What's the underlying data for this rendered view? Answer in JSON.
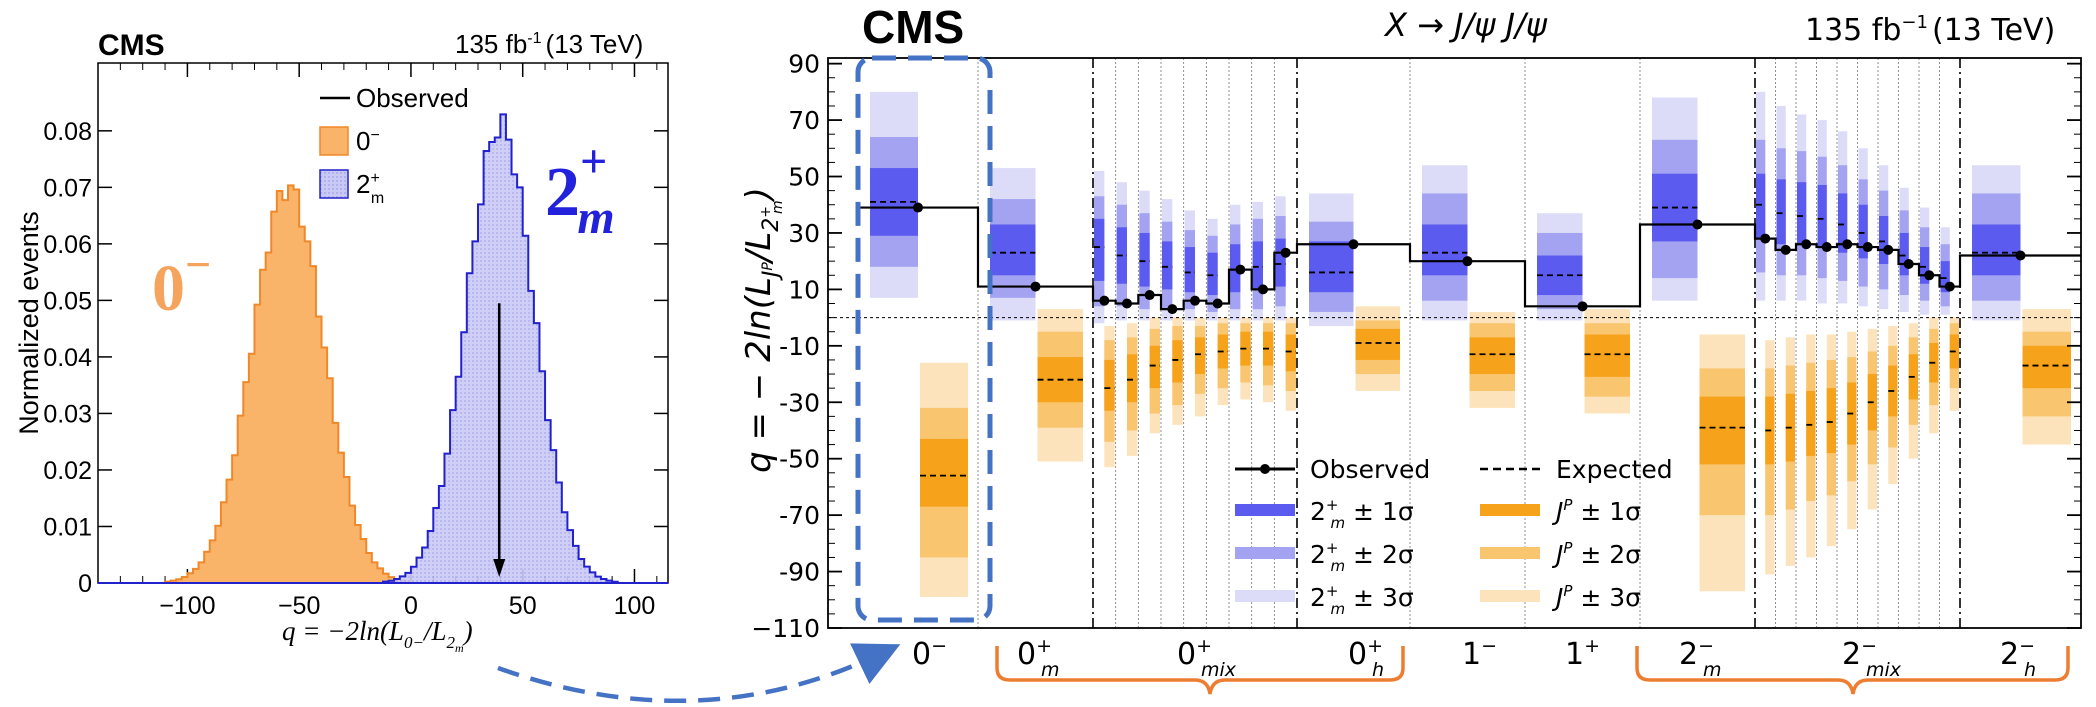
{
  "chart_data": [
    {
      "type": "histogram",
      "experiment": "CMS",
      "luminosity": "135 fb",
      "luminosity_sup": "-1",
      "energy": "(13 TeV)",
      "xlabel": "q = −2ln(L",
      "xlabel_sub1": "0−",
      "xlabel_sub2": "2",
      "xlabel_sub3": "m",
      "ylabel": "Normalized events",
      "xlim": [
        -140,
        115
      ],
      "ylim": [
        0,
        0.092
      ],
      "x_ticks": [
        -100,
        -50,
        0,
        50,
        100
      ],
      "x_tick_labels": [
        "−100",
        "−50",
        "0",
        "50",
        "100"
      ],
      "y_ticks": [
        0,
        0.01,
        0.02,
        0.03,
        0.04,
        0.05,
        0.06,
        0.07,
        0.08
      ],
      "y_tick_labels": [
        "0",
        "0.01",
        "0.02",
        "0.03",
        "0.04",
        "0.05",
        "0.06",
        "0.07",
        "0.08"
      ],
      "legend": {
        "observed": "Observed",
        "h1": "0",
        "h1_sup": "−",
        "h2": "2",
        "h2_sup": "+",
        "h2_sub": "m"
      },
      "big_labels": {
        "zero_minus": "0",
        "zero_minus_sup": "−",
        "two_plus": "2",
        "two_plus_sup": "+",
        "two_plus_sub": "m"
      },
      "series": [
        {
          "name": "0−",
          "mean": -55,
          "sigma": 16,
          "peak": 0.07,
          "color": "#f9b46a"
        },
        {
          "name": "2+m",
          "mean": 40,
          "sigma": 15,
          "peak": 0.081,
          "color": "#c8c8f4"
        }
      ],
      "observed_q": 39.5
    },
    {
      "type": "band-summary",
      "experiment": "CMS",
      "title": "X → J/ψ J/ψ",
      "luminosity": "135 fb",
      "luminosity_sup": "−1",
      "energy": "(13 TeV)",
      "ylabel": "q = − 2ln(L",
      "ylim": [
        -110,
        92
      ],
      "y_ticks": [
        90,
        70,
        50,
        30,
        10,
        -10,
        -30,
        -50,
        -70,
        -90,
        -110
      ],
      "y_tick_labels": [
        "90",
        "70",
        "50",
        "30",
        "10",
        "-10",
        "-30",
        "-50",
        "-70",
        "-90",
        "−110"
      ],
      "categories": [
        {
          "label": "0",
          "sup": "−",
          "sub": ""
        },
        {
          "label": "0",
          "sup": "+",
          "sub": "m"
        },
        {
          "label": "0",
          "sup": "+",
          "sub": "mix"
        },
        {
          "label": "0",
          "sup": "+",
          "sub": "h"
        },
        {
          "label": "1",
          "sup": "−",
          "sub": ""
        },
        {
          "label": "1",
          "sup": "+",
          "sub": ""
        },
        {
          "label": "2",
          "sup": "−",
          "sub": "m"
        },
        {
          "label": "2",
          "sup": "−",
          "sub": "mix"
        },
        {
          "label": "2",
          "sup": "−",
          "sub": "h"
        }
      ],
      "legend": {
        "observed": "Observed",
        "expected": "Expected",
        "blue_1": "2",
        "blue_1_rest": " ± 1σ",
        "blue_2_rest": " ± 2σ",
        "blue_3_rest": " ± 3σ",
        "orange_1": "J",
        "orange_sup": "P",
        "orange_1_rest": " ± 1σ",
        "orange_2_rest": " ± 2σ",
        "orange_3_rest": " ± 3σ"
      },
      "colors": {
        "blue1": "#5b5bf0",
        "blue2": "#a3a3f2",
        "blue3": "#dcdcf8",
        "orange1": "#f7a21b",
        "orange2": "#f9c56e",
        "orange3": "#fce3bb",
        "highlight": "#4472c4",
        "bracket": "#ed7d31"
      },
      "hypotheses": [
        {
          "id": "0m",
          "obs": 39,
          "b_med": 41,
          "b1": [
            29,
            53
          ],
          "b2": [
            18,
            64
          ],
          "b3": [
            7,
            80
          ],
          "o_med": -56,
          "o1": [
            -67,
            -43
          ],
          "o2": [
            -85,
            -32
          ],
          "o3": [
            -99,
            -16
          ]
        },
        {
          "id": "0pm",
          "obs": 11,
          "b_med": 23,
          "b1": [
            15,
            33
          ],
          "b2": [
            7,
            42
          ],
          "b3": [
            -1,
            53
          ],
          "o_med": -22,
          "o1": [
            -30,
            -14
          ],
          "o2": [
            -39,
            -5
          ],
          "o3": [
            -51,
            3
          ]
        },
        {
          "id": "mix1",
          "obs": 6,
          "b_med": 25,
          "b1": [
            13,
            35
          ],
          "b2": [
            4,
            43
          ],
          "b3": [
            -2,
            52
          ],
          "o_med": -25,
          "o1": [
            -33,
            -15
          ],
          "o2": [
            -44,
            -8
          ],
          "o3": [
            -53,
            -3
          ]
        },
        {
          "id": "mix2",
          "obs": 5,
          "b_med": 22,
          "b1": [
            12,
            32
          ],
          "b2": [
            4,
            40
          ],
          "b3": [
            -1,
            48
          ],
          "o_med": -22,
          "o1": [
            -30,
            -13
          ],
          "o2": [
            -40,
            -7
          ],
          "o3": [
            -49,
            -2
          ]
        },
        {
          "id": "mix3",
          "obs": 8,
          "b_med": 20,
          "b1": [
            11,
            30
          ],
          "b2": [
            3,
            37
          ],
          "b3": [
            -1,
            45
          ],
          "o_med": -17,
          "o1": [
            -25,
            -10
          ],
          "o2": [
            -34,
            -4
          ],
          "o3": [
            -41,
            0
          ]
        },
        {
          "id": "mix4",
          "obs": 3,
          "b_med": 18,
          "b1": [
            10,
            27
          ],
          "b2": [
            3,
            34
          ],
          "b3": [
            -1,
            42
          ],
          "o_med": -15,
          "o1": [
            -23,
            -8
          ],
          "o2": [
            -31,
            -3
          ],
          "o3": [
            -38,
            0
          ]
        },
        {
          "id": "mix5",
          "obs": 6,
          "b_med": 16,
          "b1": [
            9,
            25
          ],
          "b2": [
            3,
            31
          ],
          "b3": [
            -1,
            38
          ],
          "o_med": -13,
          "o1": [
            -20,
            -7
          ],
          "o2": [
            -27,
            -3
          ],
          "o3": [
            -35,
            0
          ]
        },
        {
          "id": "mix6",
          "obs": 5,
          "b_med": 15,
          "b1": [
            8,
            23
          ],
          "b2": [
            2,
            29
          ],
          "b3": [
            -1,
            35
          ],
          "o_med": -12,
          "o1": [
            -18,
            -6
          ],
          "o2": [
            -25,
            -2
          ],
          "o3": [
            -31,
            0
          ]
        },
        {
          "id": "mix7",
          "obs": 17,
          "b_med": 17,
          "b1": [
            9,
            26
          ],
          "b2": [
            3,
            33
          ],
          "b3": [
            -1,
            40
          ],
          "o_med": -11,
          "o1": [
            -17,
            -5
          ],
          "o2": [
            -23,
            -2
          ],
          "o3": [
            -29,
            0
          ]
        },
        {
          "id": "mix8",
          "obs": 10,
          "b_med": 18,
          "b1": [
            10,
            27
          ],
          "b2": [
            3,
            35
          ],
          "b3": [
            -1,
            41
          ],
          "o_med": -11,
          "o1": [
            -17,
            -5
          ],
          "o2": [
            -24,
            -2
          ],
          "o3": [
            -30,
            0
          ]
        },
        {
          "id": "mix9",
          "obs": 23,
          "b_med": 19,
          "b1": [
            11,
            28
          ],
          "b2": [
            4,
            36
          ],
          "b3": [
            -1,
            43
          ],
          "o_med": -12,
          "o1": [
            -19,
            -6
          ],
          "o2": [
            -26,
            -2
          ],
          "o3": [
            -33,
            0
          ]
        },
        {
          "id": "0ph",
          "obs": 26,
          "b_med": 16,
          "b1": [
            9,
            27
          ],
          "b2": [
            2,
            34
          ],
          "b3": [
            -3,
            44
          ],
          "o_med": -9,
          "o1": [
            -15,
            -4
          ],
          "o2": [
            -20,
            -1
          ],
          "o3": [
            -26,
            4
          ]
        },
        {
          "id": "1m",
          "obs": 20,
          "b_med": 23,
          "b1": [
            15,
            33
          ],
          "b2": [
            6,
            44
          ],
          "b3": [
            -1,
            54
          ],
          "o_med": -13,
          "o1": [
            -20,
            -7
          ],
          "o2": [
            -26,
            -2
          ],
          "o3": [
            -32,
            2
          ]
        },
        {
          "id": "1p",
          "obs": 4,
          "b_med": 15,
          "b1": [
            8,
            22
          ],
          "b2": [
            3,
            30
          ],
          "b3": [
            -1,
            37
          ],
          "o_med": -13,
          "o1": [
            -21,
            -6
          ],
          "o2": [
            -28,
            -2
          ],
          "o3": [
            -34,
            3
          ]
        },
        {
          "id": "2mm",
          "obs": 33,
          "b_med": 39,
          "b1": [
            27,
            51
          ],
          "b2": [
            14,
            63
          ],
          "b3": [
            6,
            78
          ],
          "o_med": -39,
          "o1": [
            -52,
            -28
          ],
          "o2": [
            -70,
            -18
          ],
          "o3": [
            -97,
            -6
          ]
        },
        {
          "id": "x1",
          "obs": 28,
          "b_med": 40,
          "b1": [
            28,
            51
          ],
          "b2": [
            16,
            63
          ],
          "b3": [
            6,
            80
          ],
          "o_med": -40,
          "o1": [
            -52,
            -28
          ],
          "o2": [
            -70,
            -18
          ],
          "o3": [
            -91,
            -8
          ]
        },
        {
          "id": "x2",
          "obs": 24,
          "b_med": 37,
          "b1": [
            26,
            49
          ],
          "b2": [
            15,
            60
          ],
          "b3": [
            6,
            75
          ],
          "o_med": -39,
          "o1": [
            -51,
            -27
          ],
          "o2": [
            -68,
            -17
          ],
          "o3": [
            -88,
            -7
          ]
        },
        {
          "id": "x3",
          "obs": 26,
          "b_med": 36,
          "b1": [
            26,
            48
          ],
          "b2": [
            15,
            59
          ],
          "b3": [
            6,
            72
          ],
          "o_med": -38,
          "o1": [
            -49,
            -26
          ],
          "o2": [
            -65,
            -16
          ],
          "o3": [
            -85,
            -6
          ]
        },
        {
          "id": "x4",
          "obs": 25,
          "b_med": 35,
          "b1": [
            25,
            47
          ],
          "b2": [
            14,
            57
          ],
          "b3": [
            5,
            70
          ],
          "o_med": -37,
          "o1": [
            -48,
            -25
          ],
          "o2": [
            -63,
            -15
          ],
          "o3": [
            -81,
            -6
          ]
        },
        {
          "id": "x5",
          "obs": 26,
          "b_med": 33,
          "b1": [
            23,
            44
          ],
          "b2": [
            13,
            54
          ],
          "b3": [
            5,
            66
          ],
          "o_med": -34,
          "o1": [
            -45,
            -23
          ],
          "o2": [
            -58,
            -14
          ],
          "o3": [
            -75,
            -5
          ]
        },
        {
          "id": "x6",
          "obs": 25,
          "b_med": 30,
          "b1": [
            21,
            40
          ],
          "b2": [
            11,
            49
          ],
          "b3": [
            4,
            60
          ],
          "o_med": -30,
          "o1": [
            -40,
            -20
          ],
          "o2": [
            -52,
            -12
          ],
          "o3": [
            -68,
            -4
          ]
        },
        {
          "id": "x7",
          "obs": 24,
          "b_med": 27,
          "b1": [
            19,
            36
          ],
          "b2": [
            10,
            45
          ],
          "b3": [
            3,
            54
          ],
          "o_med": -26,
          "o1": [
            -35,
            -17
          ],
          "o2": [
            -46,
            -10
          ],
          "o3": [
            -59,
            -3
          ]
        },
        {
          "id": "x8",
          "obs": 19,
          "b_med": 22,
          "b1": [
            15,
            30
          ],
          "b2": [
            8,
            38
          ],
          "b3": [
            2,
            46
          ],
          "o_med": -21,
          "o1": [
            -29,
            -13
          ],
          "o2": [
            -38,
            -7
          ],
          "o3": [
            -50,
            -2
          ]
        },
        {
          "id": "x9",
          "obs": 15,
          "b_med": 18,
          "b1": [
            12,
            25
          ],
          "b2": [
            6,
            32
          ],
          "b3": [
            1,
            39
          ],
          "o_med": -16,
          "o1": [
            -23,
            -9
          ],
          "o2": [
            -31,
            -4
          ],
          "o3": [
            -41,
            0
          ]
        },
        {
          "id": "x10",
          "obs": 11,
          "b_med": 14,
          "b1": [
            9,
            20
          ],
          "b2": [
            4,
            26
          ],
          "b3": [
            1,
            32
          ],
          "o_med": -12,
          "o1": [
            -18,
            -6
          ],
          "o2": [
            -25,
            -2
          ],
          "o3": [
            -33,
            0
          ]
        },
        {
          "id": "2mh",
          "obs": 22,
          "b_med": 23,
          "b1": [
            15,
            33
          ],
          "b2": [
            6,
            44
          ],
          "b3": [
            -1,
            54
          ],
          "o_med": -17,
          "o1": [
            -25,
            -10
          ],
          "o2": [
            -35,
            -5
          ],
          "o3": [
            -45,
            3
          ]
        }
      ]
    }
  ]
}
